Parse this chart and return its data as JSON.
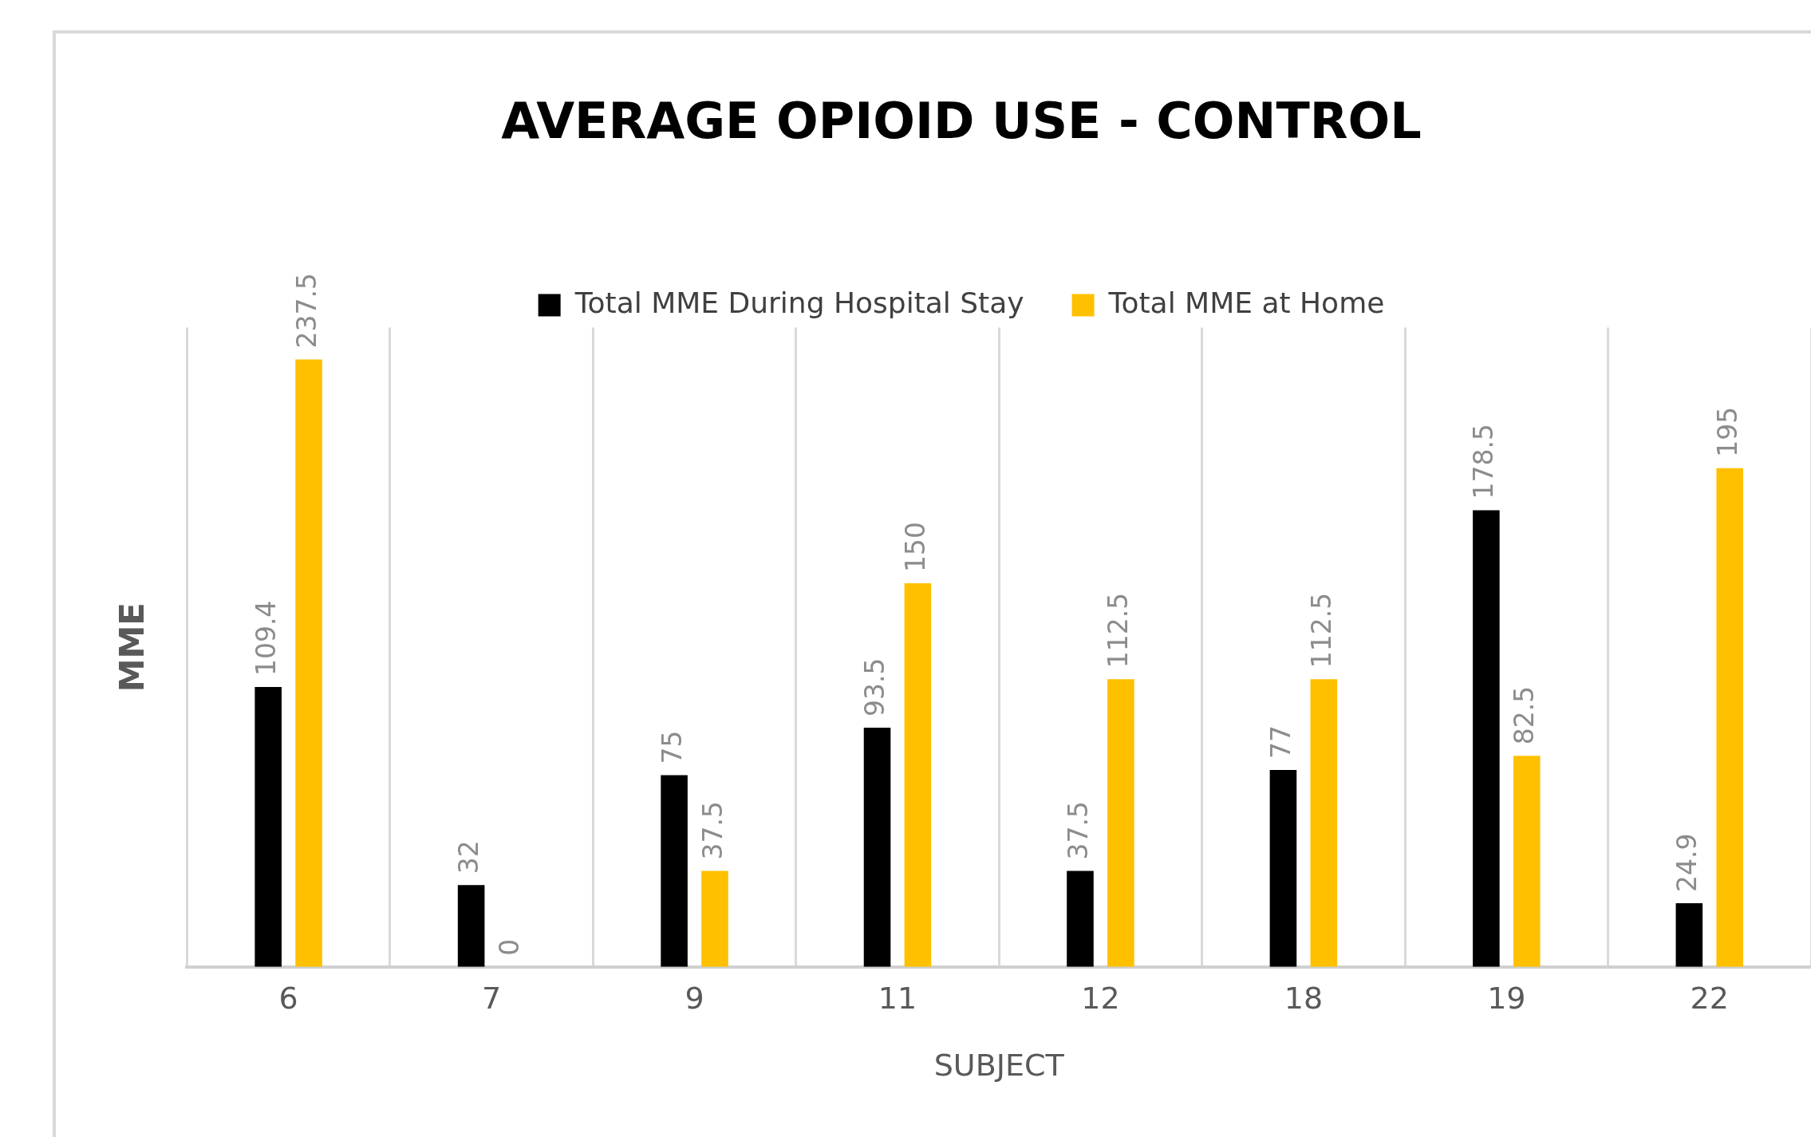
{
  "chart_data": {
    "type": "bar",
    "title": "AVERAGE OPIOID USE - CONTROL",
    "xlabel": "SUBJECT",
    "ylabel": "MME",
    "categories": [
      "6",
      "7",
      "9",
      "11",
      "12",
      "18",
      "19",
      "22"
    ],
    "series": [
      {
        "name": "Total MME During Hospital Stay",
        "color": "#000000",
        "values": [
          109.4,
          32,
          75,
          93.5,
          37.5,
          77,
          178.5,
          24.9
        ]
      },
      {
        "name": "Total MME at Home",
        "color": "#ffc000",
        "values": [
          237.5,
          0,
          37.5,
          150,
          112.5,
          112.5,
          82.5,
          195
        ]
      }
    ],
    "ylim": [
      0,
      250
    ],
    "grid": "x",
    "legend": "top",
    "tick_labels": "x",
    "data_labels": true
  }
}
